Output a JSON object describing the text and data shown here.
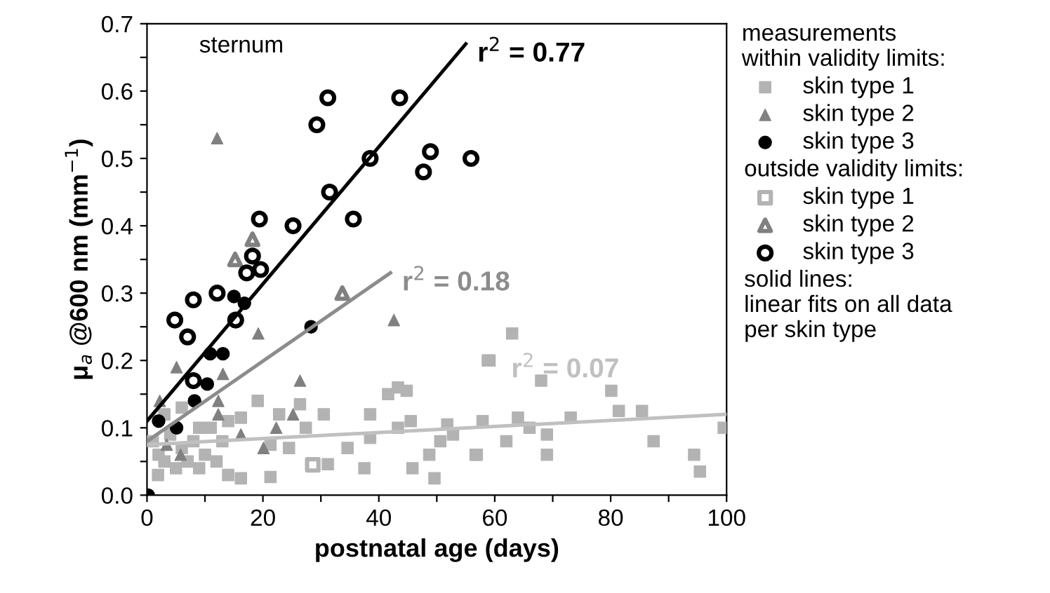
{
  "chart_data": {
    "type": "scatter",
    "xlabel": "postnatal age (days)",
    "ylabel": "μ$_{a}$ @600 nm (mm$^{−1}$)",
    "xlim": [
      0,
      100
    ],
    "ylim": [
      0,
      0.7
    ],
    "xticks": [
      0,
      {
        "value": 10,
        "label": null
      },
      20,
      {
        "value": 30,
        "label": null
      },
      40,
      {
        "value": 50,
        "label": null
      },
      60,
      {
        "value": 70,
        "label": null
      },
      80,
      {
        "value": 90,
        "label": null
      },
      100
    ],
    "yticks": [
      {
        "value": 0.0,
        "label": "0.0"
      },
      {
        "value": 0.05,
        "label": null
      },
      0.1,
      {
        "value": 0.15,
        "label": null
      },
      0.2,
      {
        "value": 0.25,
        "label": null
      },
      0.3,
      {
        "value": 0.35,
        "label": null
      },
      0.4,
      {
        "value": 0.45,
        "label": null
      },
      0.5,
      {
        "value": 0.55,
        "label": null
      },
      0.6,
      {
        "value": 0.65,
        "label": null
      },
      0.7
    ],
    "grid": false,
    "legend": "right",
    "legend_title": "measurements\nwithin validity limits:",
    "annotations": [
      "sternum",
      "outside validity limits:",
      "solid lines:\nlinear fits on all data\nper skin type",
      "r$^{2}$ = 0.07",
      "r$^{2}$ = 0.18",
      "r$^{2}$ = 0.77"
    ],
    "series": [
      {
        "name": "skin type 1",
        "color": "#b3b3b3",
        "marker": "square",
        "x": [
          58.8,
          41.6,
          43.3,
          44.8,
          19.1,
          26.4,
          30.5,
          38.5,
          16.2,
          22.8,
          57.9,
          45.5,
          27.4,
          43.3,
          51.8,
          52.8,
          50.6,
          38.5,
          34.6,
          24.5,
          21.3,
          31.2,
          37.5,
          45.8,
          48.7,
          56.7,
          49.6,
          21.3,
          16.2,
          14.0,
          1.9,
          2,
          3,
          4,
          5,
          6,
          7,
          8,
          9,
          10,
          11,
          12,
          13,
          14,
          3,
          6,
          9,
          1,
          63.0,
          59.1,
          68.0,
          80.1,
          64.0,
          66.0,
          69.0,
          73.1,
          81.4,
          85.4,
          87.4,
          99.5,
          56.9,
          62.0,
          69.0,
          94.4,
          95.4
        ],
        "values": [
          0.2,
          0.15,
          0.16,
          0.155,
          0.14,
          0.135,
          0.12,
          0.12,
          0.115,
          0.12,
          0.11,
          0.11,
          0.1,
          0.1,
          0.105,
          0.09,
          0.08,
          0.085,
          0.07,
          0.07,
          0.075,
          0.046,
          0.04,
          0.04,
          0.06,
          0.06,
          0.025,
          0.027,
          0.025,
          0.03,
          0.03,
          0.06,
          0.05,
          0.09,
          0.04,
          0.07,
          0.05,
          0.08,
          0.04,
          0.06,
          0.1,
          0.05,
          0.08,
          0.11,
          0.12,
          0.13,
          0.1,
          0.08,
          0.24,
          0.2,
          0.17,
          0.155,
          0.115,
          0.1,
          0.09,
          0.115,
          0.125,
          0.125,
          0.08,
          0.1,
          0.06,
          0.08,
          0.06,
          0.06,
          0.035
        ]
      },
      {
        "name": "skin type 2",
        "color": "#808080",
        "marker": "triangle",
        "x": [
          12.1,
          42.6,
          19.2,
          5.1,
          13.1,
          26.4,
          12.3,
          25.2,
          12.3,
          22.3,
          16.2,
          20.1,
          5.8,
          3.4,
          2.2
        ],
        "values": [
          0.53,
          0.26,
          0.24,
          0.19,
          0.18,
          0.17,
          0.14,
          0.12,
          0.12,
          0.1,
          0.09,
          0.07,
          0.06,
          0.075,
          0.14
        ]
      },
      {
        "name": "skin type 3",
        "color": "#000000",
        "marker": "circle",
        "x": [
          15.0,
          16.8,
          28.3,
          10.9,
          13.1,
          10.4,
          8.2,
          2.0,
          5.1,
          0.2
        ],
        "values": [
          0.295,
          0.285,
          0.25,
          0.21,
          0.21,
          0.165,
          0.14,
          0.11,
          0.1,
          0.0
        ]
      },
      {
        "name": "skin type 1",
        "color": "#b3b3b3",
        "marker": "square",
        "x": [
          28.6
        ],
        "values": [
          0.045
        ]
      },
      {
        "name": "skin type 2",
        "color": "#808080",
        "marker": "triangle",
        "x": [
          15.2,
          33.7,
          18.2
        ],
        "values": [
          0.35,
          0.3,
          0.38
        ]
      },
      {
        "name": "skin type 3",
        "color": "#000000",
        "marker": "circle",
        "x": [
          31.2,
          43.6,
          29.3,
          38.5,
          48.9,
          47.7,
          55.9,
          31.5,
          19.4,
          25.2,
          35.6,
          18.2,
          17.2,
          19.6,
          8.0,
          12.1,
          4.8,
          7.0,
          15.3,
          8.0
        ],
        "values": [
          0.59,
          0.59,
          0.55,
          0.5,
          0.51,
          0.48,
          0.5,
          0.45,
          0.41,
          0.4,
          0.41,
          0.355,
          0.33,
          0.335,
          0.29,
          0.3,
          0.26,
          0.235,
          0.26,
          0.17
        ]
      },
      {
        "type": "line",
        "color": "#c0c0c0",
        "x": [
          0,
          100
        ],
        "values": [
          0.075,
          0.12
        ]
      },
      {
        "type": "line",
        "color": "#8c8c8c",
        "x": [
          0,
          42
        ],
        "values": [
          0.08,
          0.33
        ]
      },
      {
        "type": "line",
        "color": "#000000",
        "x": [
          0,
          55
        ],
        "values": [
          0.11,
          0.67
        ]
      }
    ]
  }
}
